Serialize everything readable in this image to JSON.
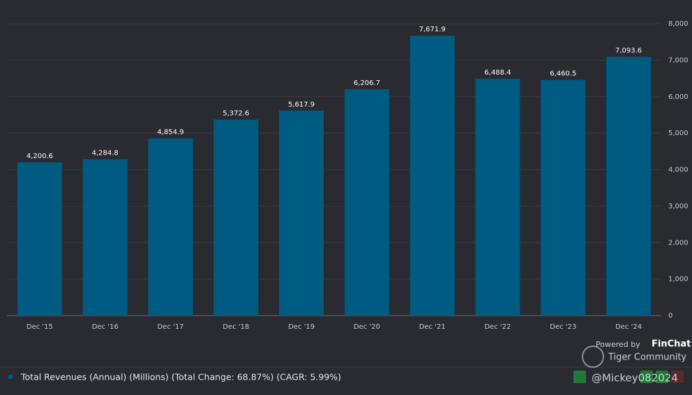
{
  "chart_data": {
    "type": "bar",
    "categories": [
      "Dec '15",
      "Dec '16",
      "Dec '17",
      "Dec '18",
      "Dec '19",
      "Dec '20",
      "Dec '21",
      "Dec '22",
      "Dec '23",
      "Dec '24"
    ],
    "series": [
      {
        "name": "Total Revenues (Annual) (Millions) (Total Change: 68.87%) (CAGR: 5.99%)",
        "color": "#005b82",
        "values": [
          4200.6,
          4284.8,
          4854.9,
          5372.6,
          5617.9,
          6206.7,
          7671.9,
          6488.4,
          6460.5,
          7093.6
        ],
        "value_labels": [
          "4,200.6",
          "4,284.8",
          "4,854.9",
          "5,372.6",
          "5,617.9",
          "6,206.7",
          "7,671.9",
          "6,488.4",
          "6,460.5",
          "7,093.6"
        ]
      }
    ],
    "ylim": [
      0,
      8000
    ],
    "yticks": [
      0,
      {
        "value": 1000,
        "label": "1,000"
      },
      {
        "value": 2000,
        "label": "2,000"
      },
      {
        "value": 3000,
        "label": "3,000"
      },
      {
        "value": 4000,
        "label": "4,000"
      },
      {
        "value": 5000,
        "label": "5,000"
      },
      {
        "value": 6000,
        "label": "6,000"
      },
      {
        "value": 7000,
        "label": "7,000"
      },
      {
        "value": 8000,
        "label": "8,000"
      }
    ],
    "grid": true,
    "credits": [
      "Powered by",
      "FinChat"
    ],
    "watermark": [
      "Tiger Community",
      "@Mickey082024"
    ]
  }
}
